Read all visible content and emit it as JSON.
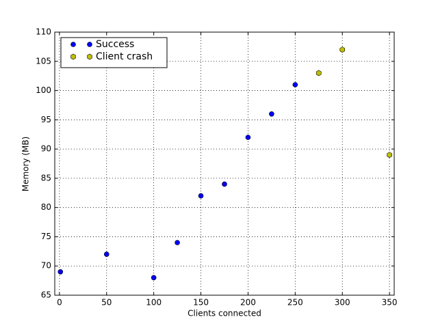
{
  "chart_data": {
    "type": "scatter",
    "xlabel": "Clients connected",
    "ylabel": "Memory (MB)",
    "series": [
      {
        "name": "Success",
        "color": "#0000ff",
        "marker": "circle",
        "x": [
          1,
          50,
          100,
          125,
          150,
          175,
          200,
          225,
          250
        ],
        "values": [
          69,
          72,
          68,
          74,
          82,
          84,
          92,
          96,
          101
        ]
      },
      {
        "name": "Client crash",
        "color": "#bfbf00",
        "marker": "hexagon",
        "x": [
          275,
          300,
          350
        ],
        "values": [
          103,
          107,
          89
        ]
      }
    ],
    "xlim": [
      -5,
      355
    ],
    "ylim": [
      65,
      110
    ],
    "xticks": [
      0,
      50,
      100,
      150,
      200,
      250,
      300,
      350
    ],
    "yticks": [
      65,
      70,
      75,
      80,
      85,
      90,
      95,
      100,
      105,
      110
    ],
    "grid": true,
    "legend": "upper left"
  }
}
